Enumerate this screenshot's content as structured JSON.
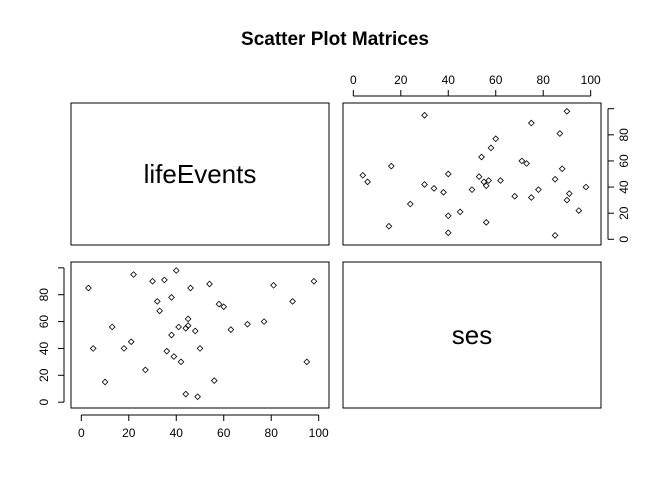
{
  "chart_data": {
    "type": "scatter",
    "title": "Scatter Plot Matrices",
    "variables": [
      "lifeEvents",
      "ses"
    ],
    "axis_range": [
      0,
      100
    ],
    "ticks": [
      0,
      20,
      40,
      60,
      80,
      100
    ],
    "grid": false,
    "legend": "none",
    "points": {
      "lifeEvents": [
        3,
        5,
        10,
        13,
        18,
        21,
        22,
        27,
        30,
        32,
        33,
        35,
        36,
        38,
        38,
        39,
        40,
        41,
        42,
        44,
        44,
        45,
        45,
        46,
        48,
        49,
        50,
        54,
        56,
        58,
        60,
        63,
        70,
        77,
        81,
        89,
        95,
        98
      ],
      "ses": [
        85,
        40,
        15,
        56,
        40,
        45,
        95,
        24,
        90,
        75,
        68,
        91,
        38,
        50,
        78,
        34,
        98,
        56,
        30,
        6,
        55,
        57,
        62,
        85,
        53,
        4,
        40,
        88,
        16,
        73,
        71,
        54,
        58,
        60,
        87,
        75,
        30,
        90
      ]
    }
  }
}
